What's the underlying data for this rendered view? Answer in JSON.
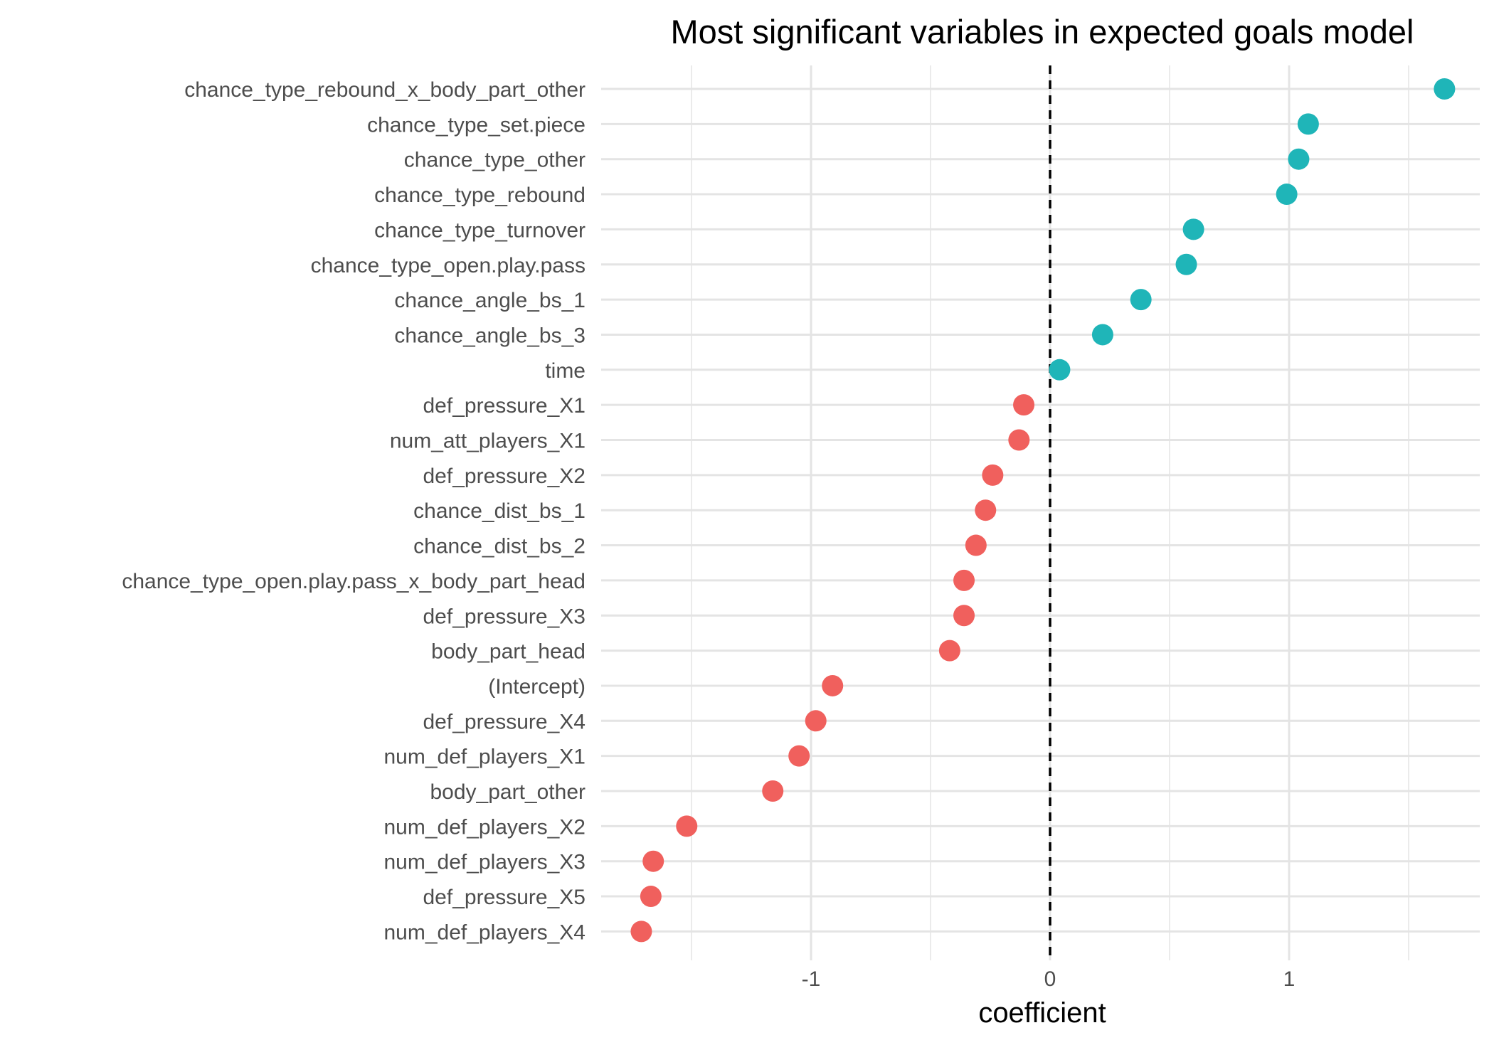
{
  "chart_data": {
    "type": "scatter",
    "title": "Most significant variables in expected goals model",
    "xlabel": "coefficient",
    "ylabel": "",
    "xlim": [
      -1.89,
      1.81
    ],
    "x_ticks": [
      -1,
      0,
      1
    ],
    "x_tick_labels": [
      "-1",
      "0",
      "1"
    ],
    "x_minor_ticks": [
      -1.5,
      -0.5,
      0.5,
      1.5
    ],
    "reference_line": {
      "x": 0,
      "style": "dashed"
    },
    "grid": true,
    "legend": "none",
    "colors": {
      "positive": "#1fb5b8",
      "negative": "#f0605d"
    },
    "categories": [
      "chance_type_rebound_x_body_part_other",
      "chance_type_set.piece",
      "chance_type_other",
      "chance_type_rebound",
      "chance_type_turnover",
      "chance_type_open.play.pass",
      "chance_angle_bs_1",
      "chance_angle_bs_3",
      "time",
      "def_pressure_X1",
      "num_att_players_X1",
      "def_pressure_X2",
      "chance_dist_bs_1",
      "chance_dist_bs_2",
      "chance_type_open.play.pass_x_body_part_head",
      "def_pressure_X3",
      "body_part_head",
      "(Intercept)",
      "def_pressure_X4",
      "num_def_players_X1",
      "body_part_other",
      "num_def_players_X2",
      "num_def_players_X3",
      "def_pressure_X5",
      "num_def_players_X4"
    ],
    "values": [
      1.65,
      1.08,
      1.04,
      0.99,
      0.6,
      0.57,
      0.38,
      0.22,
      0.04,
      -0.11,
      -0.13,
      -0.24,
      -0.27,
      -0.31,
      -0.36,
      -0.36,
      -0.42,
      -0.91,
      -0.98,
      -1.05,
      -1.16,
      -1.52,
      -1.66,
      -1.67,
      -1.71
    ]
  }
}
